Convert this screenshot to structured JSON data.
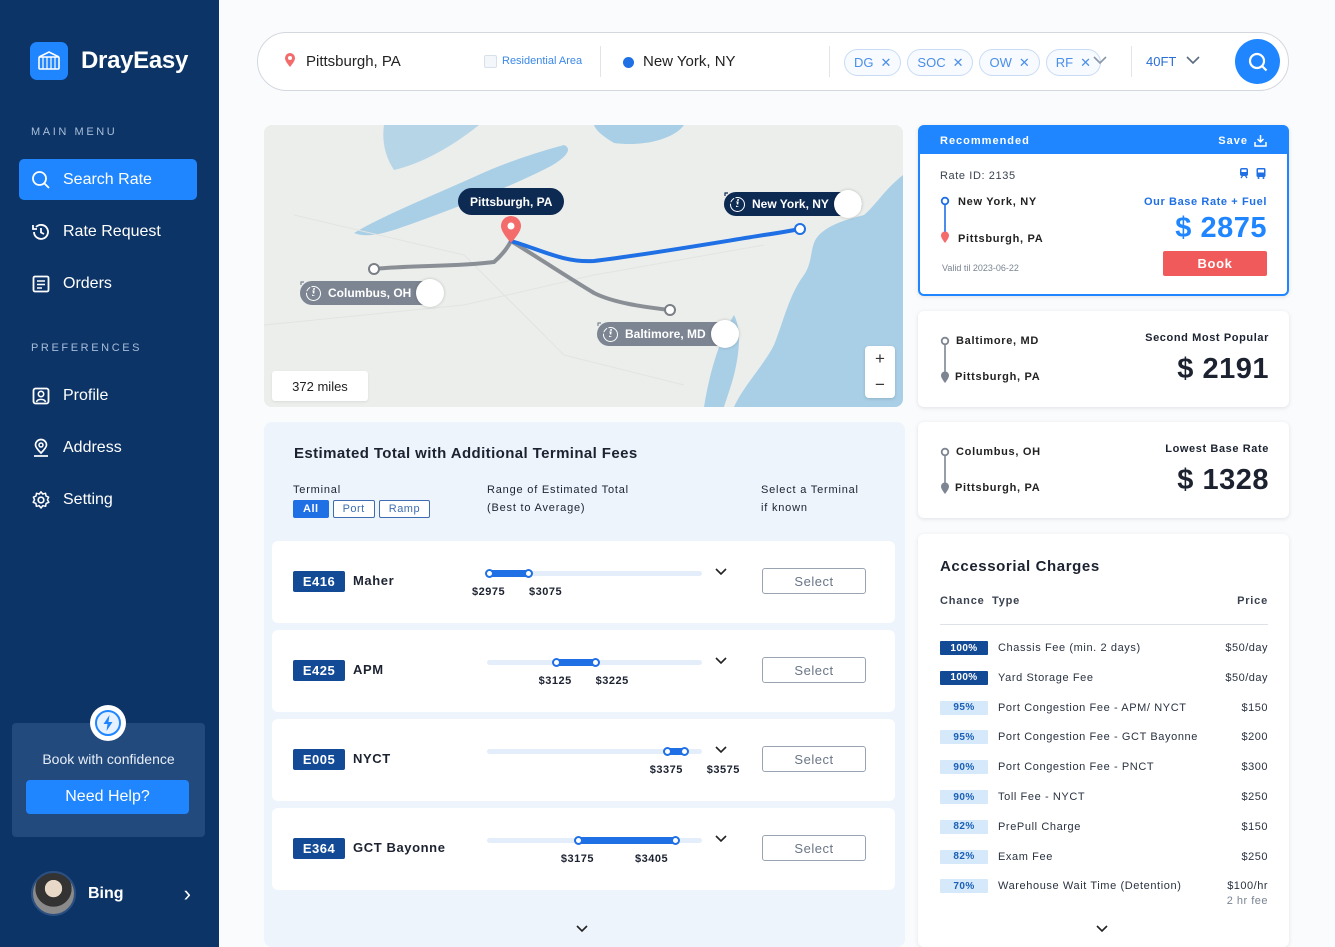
{
  "brand": {
    "name": "DrayEasy"
  },
  "sidebar": {
    "main_heading": "MAIN MENU",
    "pref_heading": "PREFERENCES",
    "main_items": [
      {
        "label": "Search Rate",
        "icon": "search-icon",
        "active": true
      },
      {
        "label": "Rate Request",
        "icon": "history-icon"
      },
      {
        "label": "Orders",
        "icon": "orders-icon"
      }
    ],
    "pref_items": [
      {
        "label": "Profile",
        "icon": "profile-icon"
      },
      {
        "label": "Address",
        "icon": "address-icon"
      },
      {
        "label": "Setting",
        "icon": "gear-icon"
      }
    ],
    "help": {
      "text": "Book with confidence",
      "button": "Need Help?"
    },
    "user": {
      "name": "Bing"
    }
  },
  "search": {
    "from": "Pittsburgh, PA",
    "residential_label": "Residential Area",
    "to": "New York, NY",
    "chips": [
      "DG",
      "SOC",
      "OW",
      "RF"
    ],
    "container": "40FT"
  },
  "map": {
    "origin_label": "Pittsburgh, PA",
    "dest_labels": [
      "New York, NY",
      "Columbus, OH",
      "Baltimore, MD"
    ],
    "distance": "372 miles",
    "zoom_in": "+",
    "zoom_out": "−"
  },
  "terminals": {
    "title": "Estimated Total with Additional Terminal Fees",
    "col_terminal": "Terminal",
    "col_range_1": "Range of Estimated Total",
    "col_range_2": "(Best to Average)",
    "col_select_1": "Select a Terminal",
    "col_select_2": "if known",
    "filters": [
      "All",
      "Port",
      "Ramp"
    ],
    "range_scale": {
      "min": 2975,
      "max": 3425
    },
    "rows": [
      {
        "code": "E416",
        "name": "Maher",
        "low": "$2975",
        "high": "$3075",
        "low_val": 2975,
        "high_val": 3075,
        "select": "Select"
      },
      {
        "code": "E425",
        "name": "APM",
        "low": "$3125",
        "high": "$3225",
        "low_val": 3125,
        "high_val": 3225,
        "select": "Select"
      },
      {
        "code": "E005",
        "name": "NYCT",
        "low": "$3375",
        "high": "$3575",
        "low_val": 3375,
        "high_val": 3575,
        "select": "Select"
      },
      {
        "code": "E364",
        "name": "GCT Bayonne",
        "low": "$3175",
        "high": "$3405",
        "low_val": 3175,
        "high_val": 3405,
        "select": "Select"
      }
    ]
  },
  "recommended": {
    "header": "Recommended",
    "save": "Save",
    "rate_id": "Rate ID: 2135",
    "from": "New York, NY",
    "to": "Pittsburgh, PA",
    "valid": "Valid til 2023-06-22",
    "rate_label": "Our Base Rate + Fuel",
    "price": "$ 2875",
    "book": "Book"
  },
  "alt_rates": [
    {
      "from": "Baltimore, MD",
      "to": "Pittsburgh, PA",
      "label": "Second Most Popular",
      "price": "$ 2191"
    },
    {
      "from": "Columbus, OH",
      "to": "Pittsburgh, PA",
      "label": "Lowest Base Rate",
      "price": "$ 1328"
    }
  ],
  "accessorial": {
    "title": "Accessorial Charges",
    "col_chance": "Chance",
    "col_type": "Type",
    "col_price": "Price",
    "rows": [
      {
        "chance": "100%",
        "type": "Chassis Fee (min. 2 days)",
        "price": "$50/day"
      },
      {
        "chance": "100%",
        "type": "Yard Storage Fee",
        "price": "$50/day"
      },
      {
        "chance": "95%",
        "type": "Port Congestion Fee - APM/ NYCT",
        "price": "$150"
      },
      {
        "chance": "95%",
        "type": "Port Congestion Fee - GCT Bayonne",
        "price": "$200"
      },
      {
        "chance": "90%",
        "type": "Port Congestion Fee - PNCT",
        "price": "$300"
      },
      {
        "chance": "90%",
        "type": "Toll Fee - NYCT",
        "price": "$250"
      },
      {
        "chance": "82%",
        "type": "PrePull Charge",
        "price": "$150"
      },
      {
        "chance": "82%",
        "type": "Exam Fee",
        "price": "$250"
      },
      {
        "chance": "70%",
        "type": "Warehouse Wait Time (Detention)",
        "price": "$100/hr",
        "sub": "2 hr fee"
      }
    ]
  },
  "colors": {
    "primary": "#1f86ff",
    "sidebar": "#0d3466",
    "book": "#f05a5a",
    "route_blue": "#1f6fe5",
    "route_gray": "#8a8f96"
  }
}
